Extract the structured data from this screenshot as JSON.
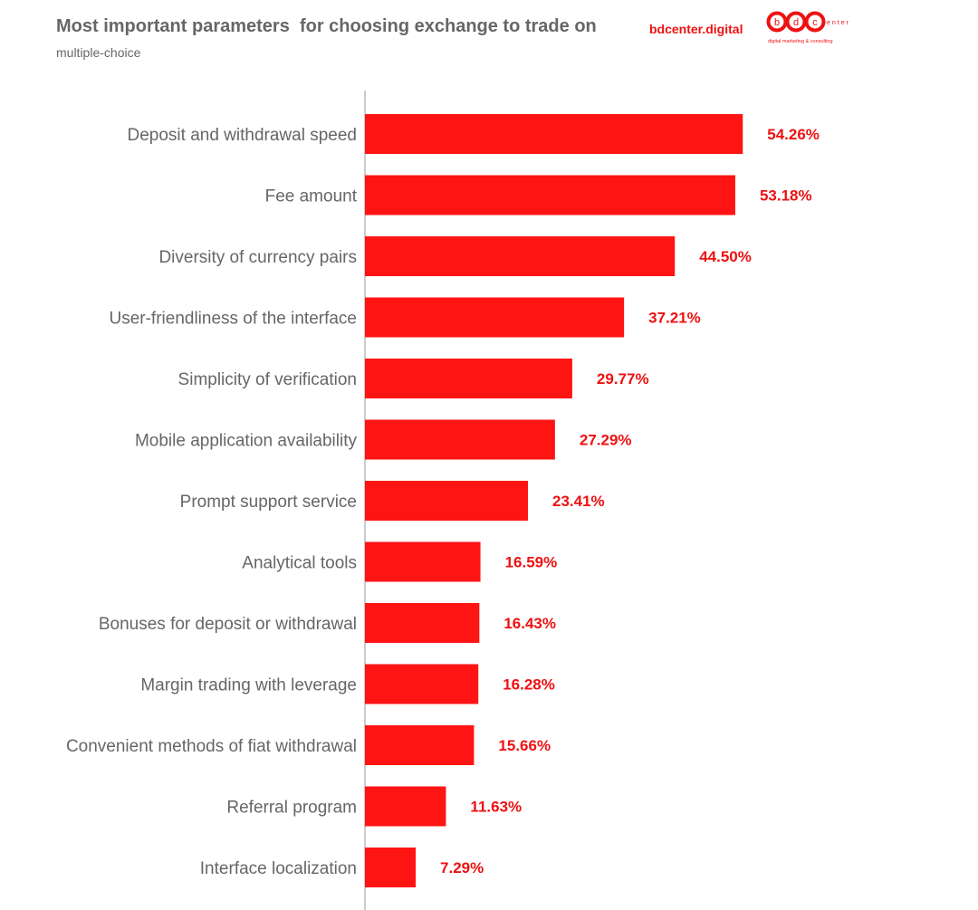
{
  "header": {
    "title": "Most important parameters  for choosing exchange to trade on",
    "subtitle": "multiple-choice",
    "brand_link": "bdcenter.digital"
  },
  "logo": {
    "letters": [
      "b",
      "d",
      "c"
    ],
    "wordmark": "enter",
    "tagline": "digital marketing & consulting",
    "color": "#ee1111"
  },
  "colors": {
    "bar": "#ff1414",
    "value_label": "#ee1111",
    "category_label": "#666666",
    "axis": "#bbbbbb"
  },
  "chart_data": {
    "type": "bar",
    "orientation": "horizontal",
    "title": "Most important parameters  for choosing exchange to trade on",
    "subtitle": "multiple-choice",
    "categories": [
      "Deposit and withdrawal speed",
      "Fee amount",
      "Diversity of currency pairs",
      "User-friendliness of the interface",
      "Simplicity of verification",
      "Mobile application availability",
      "Prompt support service",
      "Analytical tools",
      "Bonuses for deposit or withdrawal",
      "Margin trading with leverage",
      "Convenient methods of fiat withdrawal",
      "Referral program",
      "Interface localization"
    ],
    "values": [
      54.26,
      53.18,
      44.5,
      37.21,
      29.77,
      27.29,
      23.41,
      16.59,
      16.43,
      16.28,
      15.66,
      11.63,
      7.29
    ],
    "value_labels": [
      "54.26%",
      "53.18%",
      "44.50%",
      "37.21%",
      "29.77%",
      "27.29%",
      "23.41%",
      "16.59%",
      "16.43%",
      "16.28%",
      "15.66%",
      "11.63%",
      "7.29%"
    ],
    "unit": "%",
    "xlim": [
      0,
      100
    ],
    "grid": false,
    "legend": "none"
  }
}
